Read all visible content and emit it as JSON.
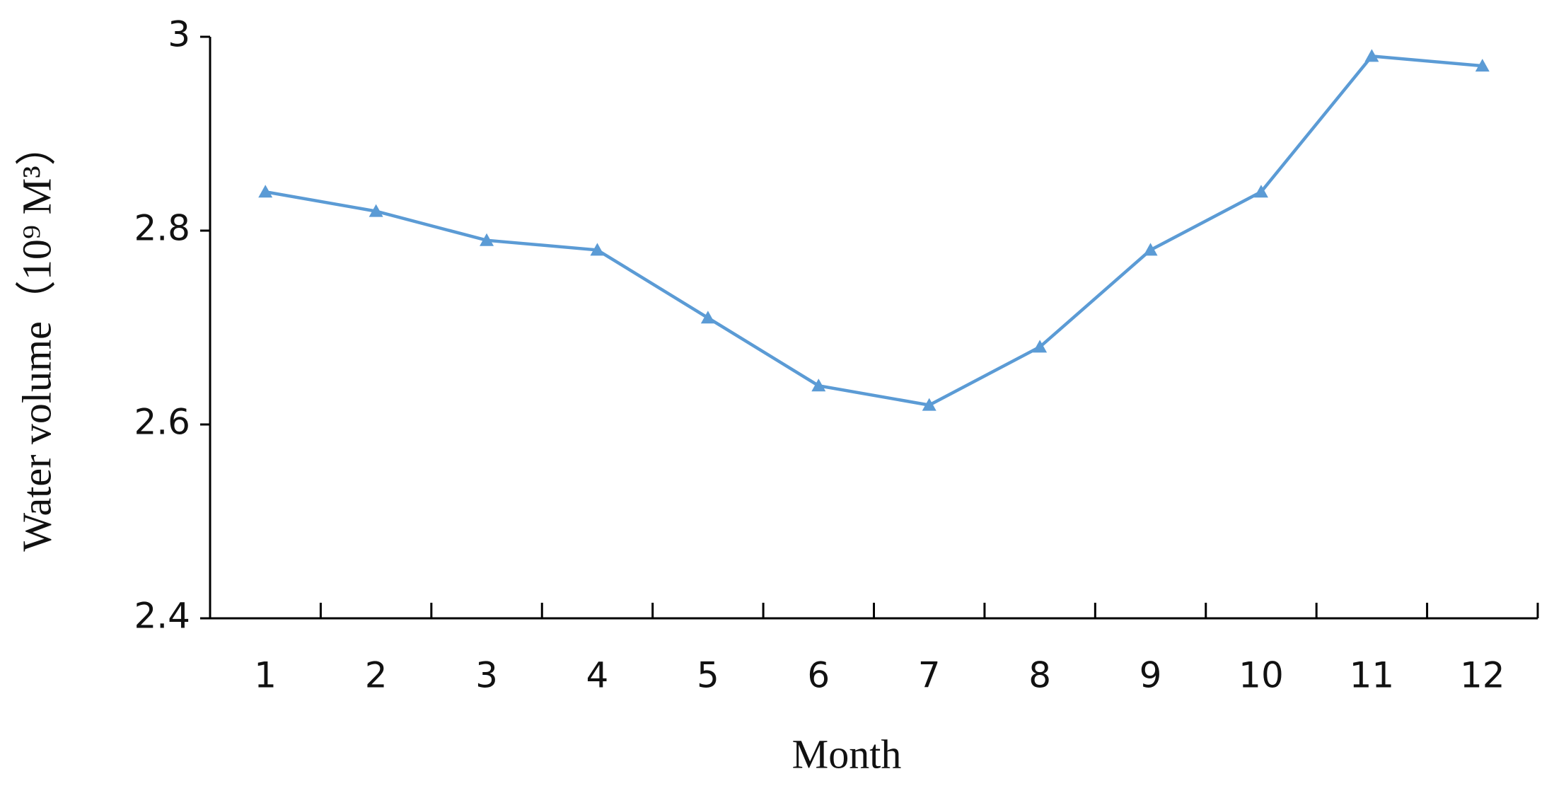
{
  "chart_data": {
    "type": "line",
    "x_label": "Month",
    "y_label": "Water volume（10⁹ M³）",
    "categories": [
      "1",
      "2",
      "3",
      "4",
      "5",
      "6",
      "7",
      "8",
      "9",
      "10",
      "11",
      "12"
    ],
    "series": [
      {
        "color": "#5b9bd5",
        "values": [
          2.84,
          2.82,
          2.79,
          2.78,
          2.71,
          2.64,
          2.62,
          2.68,
          2.78,
          2.84,
          2.98,
          2.97
        ]
      }
    ],
    "ylim": [
      2.4,
      3
    ],
    "yticks": [
      2.4,
      2.6,
      2.8,
      3
    ],
    "grid": false
  }
}
